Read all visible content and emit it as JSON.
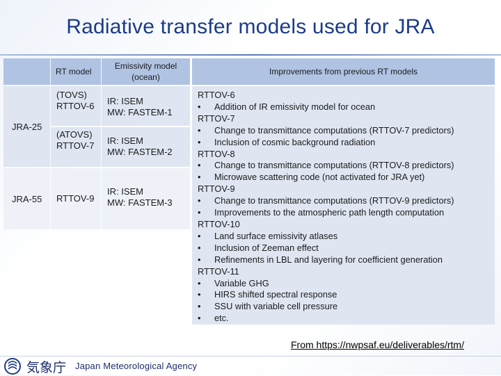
{
  "title": "Radiative transfer models used for JRA",
  "table": {
    "headers": {
      "blank": "",
      "rt_model": "RT model",
      "emissivity": "Emissivity model (ocean)",
      "improvements": "Improvements from previous RT models"
    },
    "systems": [
      {
        "name": "JRA-25"
      },
      {
        "name": "JRA-55"
      }
    ],
    "rows": [
      {
        "rt_model": [
          "(TOVS)",
          "RTTOV-6"
        ],
        "emissivity": [
          "IR: ISEM",
          "MW: FASTEM-1"
        ]
      },
      {
        "rt_model": [
          "(ATOVS)",
          "RTTOV-7"
        ],
        "emissivity": [
          "IR: ISEM",
          "MW: FASTEM-2"
        ]
      },
      {
        "rt_model": [
          "RTTOV-9"
        ],
        "emissivity": [
          "IR: ISEM",
          "MW: FASTEM-3"
        ]
      }
    ],
    "improvements": [
      {
        "type": "head",
        "text": "RTTOV-6"
      },
      {
        "type": "bullet",
        "text": "Addition of IR emissivity model for ocean"
      },
      {
        "type": "head",
        "text": "RTTOV-7"
      },
      {
        "type": "bullet",
        "text": "Change to transmittance computations (RTTOV-7 predictors)"
      },
      {
        "type": "bullet",
        "text": "Inclusion of cosmic background radiation"
      },
      {
        "type": "head",
        "text": "RTTOV-8"
      },
      {
        "type": "bullet",
        "text": "Change to transmittance computations (RTTOV-8 predictors)"
      },
      {
        "type": "bullet",
        "text": "Microwave scattering code (not activated for JRA yet)"
      },
      {
        "type": "head",
        "text": "RTTOV-9"
      },
      {
        "type": "bullet",
        "text": "Change to transmittance computations (RTTOV-9 predictors)"
      },
      {
        "type": "bullet",
        "text": "Improvements to the atmospheric path length computation"
      },
      {
        "type": "head",
        "text": "RTTOV-10"
      },
      {
        "type": "bullet",
        "text": "Land surface emissivity atlases"
      },
      {
        "type": "bullet",
        "text": "Inclusion of Zeeman effect"
      },
      {
        "type": "bullet",
        "text": "Refinements in LBL and layering for coefficient generation"
      },
      {
        "type": "head",
        "text": "RTTOV-11"
      },
      {
        "type": "bullet",
        "text": "Variable GHG"
      },
      {
        "type": "bullet",
        "text": "HIRS shifted spectral response"
      },
      {
        "type": "bullet",
        "text": "SSU with variable cell pressure"
      },
      {
        "type": "bullet",
        "text": "etc."
      }
    ],
    "bullet_glyph": "•"
  },
  "source_link": "From https://nwpsaf.eu/deliverables/rtm/",
  "footer": {
    "agency_jp": "気象庁",
    "agency_en": "Japan Meteorological Agency"
  },
  "colors": {
    "title": "#1c3b88",
    "header_fill": "#b0c3e3",
    "body_fill_dark": "#dfe6f2",
    "body_fill_light": "#eef2f8"
  }
}
